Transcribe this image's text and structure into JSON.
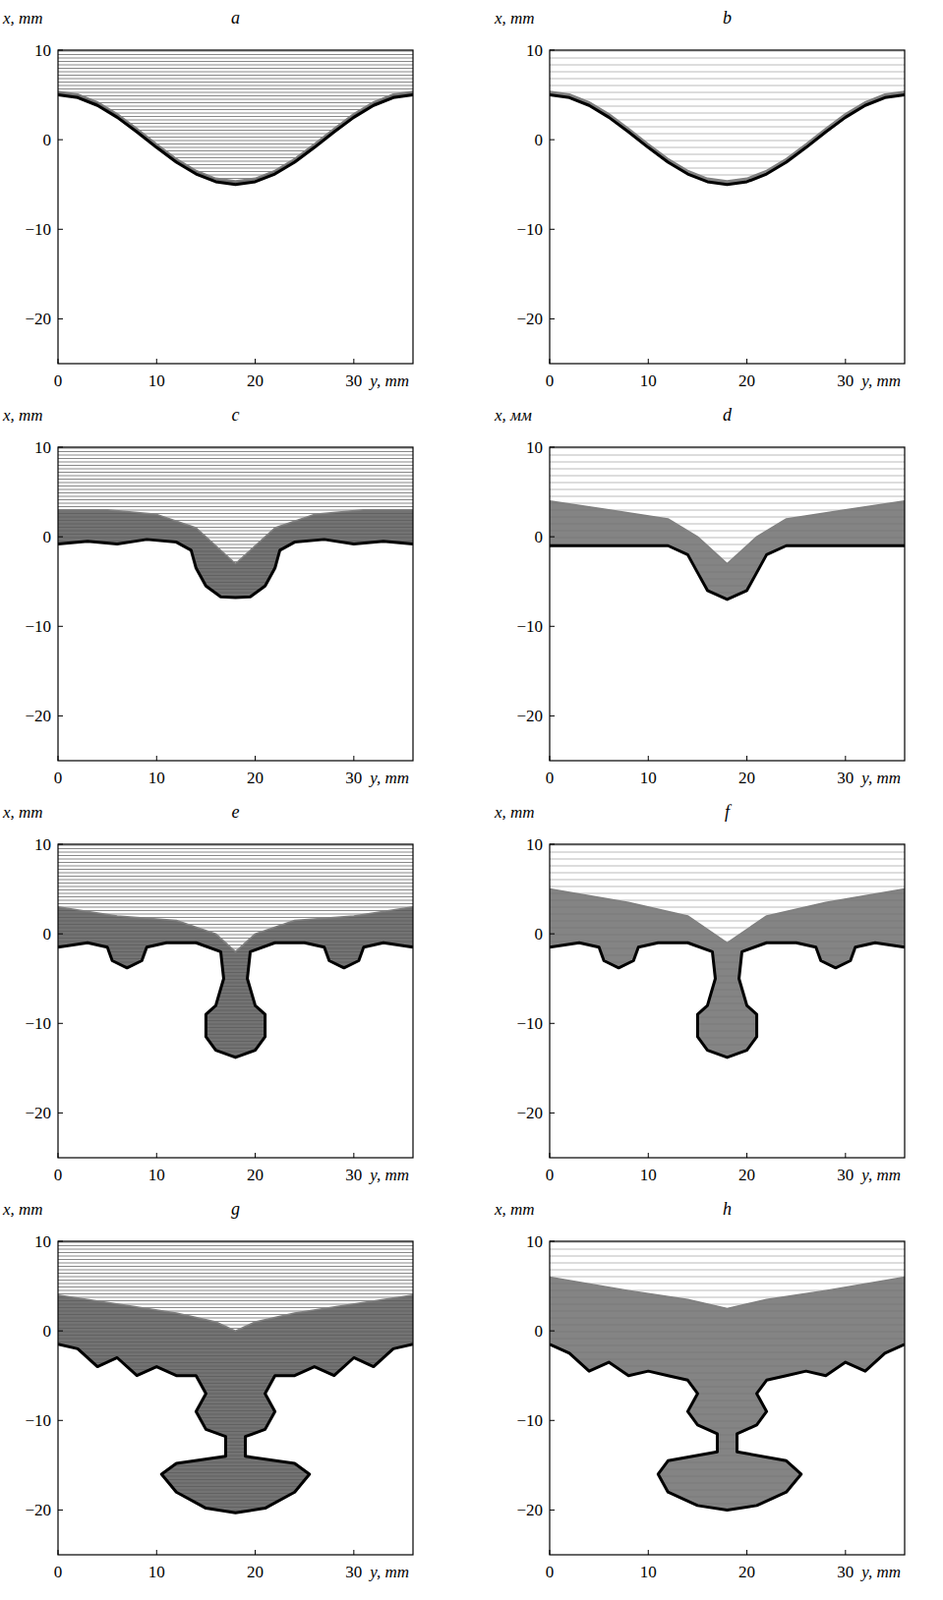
{
  "chart_data": [
    {
      "type": "contour",
      "title": "a",
      "xlabel": "y, mm",
      "ylabel": "x, mm",
      "xlim": [
        0,
        36
      ],
      "ylim": [
        -25,
        10
      ],
      "xticks": [
        0,
        10,
        20,
        30
      ],
      "yticks": [
        {
          "value": -20,
          "label": "−20"
        },
        {
          "value": -10,
          "label": "−10"
        },
        0,
        10
      ],
      "series": [
        {
          "color": "#000000",
          "x": [
            0,
            2,
            4,
            6,
            8,
            10,
            12,
            14,
            16,
            18,
            20,
            22,
            24,
            26,
            28,
            30,
            32,
            34,
            36
          ],
          "values": [
            5,
            4.7,
            3.83,
            2.5,
            0.87,
            -0.87,
            -2.5,
            -3.83,
            -4.7,
            -5,
            -4.7,
            -3.83,
            -2.5,
            -0.87,
            0.87,
            2.5,
            3.83,
            4.7,
            5
          ]
        },
        {
          "color": "#808080",
          "x": [
            0,
            2,
            4,
            6,
            8,
            10,
            12,
            14,
            16,
            18,
            20,
            22,
            24,
            26,
            28,
            30,
            32,
            34,
            36
          ],
          "values": [
            5.4,
            5.1,
            4.23,
            2.9,
            1.27,
            -0.47,
            -2.1,
            -3.43,
            -4.3,
            -4.6,
            -4.3,
            -3.43,
            -2.1,
            -0.47,
            1.27,
            2.9,
            4.23,
            5.1,
            5.4
          ]
        }
      ]
    },
    {
      "type": "contour",
      "title": "b",
      "xlabel": "y, mm",
      "ylabel": "x, mm",
      "xlim": [
        0,
        36
      ],
      "ylim": [
        -25,
        10
      ],
      "xticks": [
        0,
        10,
        20,
        30
      ],
      "yticks": [
        {
          "value": -20,
          "label": "−20"
        },
        {
          "value": -10,
          "label": "−10"
        },
        0,
        10
      ],
      "series": [
        {
          "color": "#000000",
          "x": [
            0,
            2,
            4,
            6,
            8,
            10,
            12,
            14,
            16,
            18,
            20,
            22,
            24,
            26,
            28,
            30,
            32,
            34,
            36
          ],
          "values": [
            5,
            4.7,
            3.83,
            2.5,
            0.87,
            -0.87,
            -2.5,
            -3.83,
            -4.7,
            -5,
            -4.7,
            -3.83,
            -2.5,
            -0.87,
            0.87,
            2.5,
            3.83,
            4.7,
            5
          ]
        },
        {
          "color": "#808080",
          "x": [
            0,
            2,
            4,
            6,
            8,
            10,
            12,
            14,
            16,
            18,
            20,
            22,
            24,
            26,
            28,
            30,
            32,
            34,
            36
          ],
          "values": [
            5.4,
            5.1,
            4.23,
            2.9,
            1.27,
            -0.47,
            -2.1,
            -3.43,
            -4.3,
            -4.6,
            -4.3,
            -3.43,
            -2.1,
            -0.47,
            1.27,
            2.9,
            4.23,
            5.1,
            5.4
          ]
        }
      ]
    },
    {
      "type": "contour",
      "title": "c",
      "xlabel": "y, mm",
      "ylabel": "x, mm",
      "xlim": [
        0,
        36
      ],
      "ylim": [
        -25,
        10
      ],
      "xticks": [
        0,
        10,
        20,
        30
      ],
      "yticks": [
        {
          "value": -20,
          "label": "−20"
        },
        {
          "value": -10,
          "label": "−10"
        },
        0,
        10
      ],
      "series": [
        {
          "color": "#000000",
          "x": [
            0,
            3,
            6,
            9,
            12,
            13.5,
            14,
            15,
            16.5,
            18,
            19.5,
            21,
            22,
            22.5,
            24,
            27,
            30,
            33,
            36
          ],
          "values": [
            -0.8,
            -0.5,
            -0.8,
            -0.3,
            -0.6,
            -1.5,
            -3.5,
            -5.5,
            -6.7,
            -6.8,
            -6.7,
            -5.5,
            -3.5,
            -1.5,
            -0.6,
            -0.3,
            -0.8,
            -0.5,
            -0.8
          ]
        },
        {
          "color": "#808080",
          "x": [
            0,
            5,
            10,
            14,
            16,
            18,
            20,
            22,
            26,
            31,
            36
          ],
          "values": [
            3,
            3,
            2.5,
            1,
            -1,
            -3,
            -1,
            1,
            2.5,
            3,
            3
          ]
        }
      ]
    },
    {
      "type": "contour",
      "title": "d",
      "xlabel": "y, mm",
      "ylabel": "x, мм",
      "xlim": [
        0,
        36
      ],
      "ylim": [
        -25,
        10
      ],
      "xticks": [
        0,
        10,
        20,
        30
      ],
      "yticks": [
        {
          "value": -20,
          "label": "−20"
        },
        {
          "value": -10,
          "label": "−10"
        },
        0,
        10
      ],
      "series": [
        {
          "color": "#000000",
          "x": [
            0,
            6,
            12,
            14,
            15,
            16,
            18,
            20,
            21,
            22,
            24,
            30,
            36
          ],
          "values": [
            -1,
            -1,
            -1,
            -2,
            -4,
            -6,
            -7,
            -6,
            -4,
            -2,
            -1,
            -1,
            -1
          ]
        },
        {
          "color": "#808080",
          "x": [
            0,
            6,
            12,
            15,
            18,
            21,
            24,
            30,
            36
          ],
          "values": [
            4,
            3,
            2,
            0,
            -3,
            0,
            2,
            3,
            4
          ]
        }
      ]
    },
    {
      "type": "contour",
      "title": "e",
      "xlabel": "y, mm",
      "ylabel": "x, mm",
      "xlim": [
        0,
        36
      ],
      "ylim": [
        -25,
        10
      ],
      "xticks": [
        0,
        10,
        20,
        30
      ],
      "yticks": [
        {
          "value": -20,
          "label": "−20"
        },
        {
          "value": -10,
          "label": "−10"
        },
        0,
        10
      ],
      "series": [
        {
          "color": "#000000",
          "x": [
            0,
            3,
            5,
            5.5,
            7,
            8.5,
            9,
            11,
            14,
            16.5,
            16.8,
            16,
            15,
            15,
            16,
            18,
            20,
            21,
            21,
            20,
            19.2,
            19.5,
            22,
            25,
            27,
            27.5,
            29,
            30.5,
            31,
            33,
            36
          ],
          "values": [
            -1.5,
            -1,
            -1.5,
            -3,
            -3.8,
            -3,
            -1.5,
            -1,
            -1,
            -2,
            -5,
            -8,
            -9,
            -11.5,
            -13,
            -13.8,
            -13,
            -11.5,
            -9,
            -8,
            -5,
            -2,
            -1,
            -1,
            -1.5,
            -3,
            -3.8,
            -3,
            -1.5,
            -1,
            -1.5
          ]
        },
        {
          "color": "#808080",
          "x": [
            0,
            6,
            12,
            16,
            18,
            20,
            24,
            30,
            36
          ],
          "values": [
            3,
            2,
            1.5,
            0,
            -2,
            0,
            1.5,
            2,
            3
          ]
        }
      ]
    },
    {
      "type": "contour",
      "title": "f",
      "xlabel": "y, mm",
      "ylabel": "x, mm",
      "xlim": [
        0,
        36
      ],
      "ylim": [
        -25,
        10
      ],
      "xticks": [
        0,
        10,
        20,
        30
      ],
      "yticks": [
        {
          "value": -20,
          "label": "−20"
        },
        {
          "value": -10,
          "label": "−10"
        },
        0,
        10
      ],
      "series": [
        {
          "color": "#000000",
          "x": [
            0,
            3,
            5,
            5.5,
            7,
            8.5,
            9,
            11,
            14,
            16.5,
            16.8,
            16,
            15,
            15,
            16,
            18,
            20,
            21,
            21,
            20,
            19.2,
            19.5,
            22,
            25,
            27,
            27.5,
            29,
            30.5,
            31,
            33,
            36
          ],
          "values": [
            -1.5,
            -1,
            -1.5,
            -3,
            -3.8,
            -3,
            -1.5,
            -1,
            -1,
            -2,
            -5,
            -8,
            -9,
            -11.5,
            -13,
            -13.8,
            -13,
            -11.5,
            -9,
            -8,
            -5,
            -2,
            -1,
            -1,
            -1.5,
            -3,
            -3.8,
            -3,
            -1.5,
            -1,
            -1.5
          ]
        },
        {
          "color": "#808080",
          "x": [
            0,
            8,
            14,
            18,
            22,
            28,
            36
          ],
          "values": [
            5,
            3.5,
            2,
            -1,
            2,
            3.5,
            5
          ]
        }
      ]
    },
    {
      "type": "contour",
      "title": "g",
      "xlabel": "y, mm",
      "ylabel": "x, mm",
      "xlim": [
        0,
        36
      ],
      "ylim": [
        -25,
        10
      ],
      "xticks": [
        0,
        10,
        20,
        30
      ],
      "yticks": [
        {
          "value": -20,
          "label": "−20"
        },
        {
          "value": -10,
          "label": "−10"
        },
        0,
        10
      ],
      "series": [
        {
          "color": "#000000",
          "x": [
            0,
            2,
            4,
            6,
            8,
            10,
            12,
            14,
            15,
            14,
            15,
            17,
            17,
            12,
            10.5,
            12,
            15,
            18,
            21,
            24,
            25.5,
            24,
            19,
            19,
            21,
            22,
            21,
            22,
            24,
            26,
            28,
            30,
            32,
            34,
            36
          ],
          "values": [
            -1.5,
            -2,
            -4,
            -3,
            -5,
            -4,
            -5,
            -5,
            -7,
            -9,
            -11,
            -11.8,
            -14,
            -14.8,
            -16,
            -18,
            -19.8,
            -20.3,
            -19.8,
            -18,
            -16,
            -14.8,
            -14,
            -11.8,
            -11,
            -9,
            -7,
            -5,
            -5,
            -4,
            -5,
            -3,
            -4,
            -2,
            -1.5
          ]
        },
        {
          "color": "#808080",
          "x": [
            0,
            6,
            12,
            16,
            18,
            20,
            24,
            30,
            36
          ],
          "values": [
            4,
            3,
            2,
            1,
            0,
            1,
            2,
            3,
            4
          ]
        }
      ]
    },
    {
      "type": "contour",
      "title": "h",
      "xlabel": "y, mm",
      "ylabel": "x, mm",
      "xlim": [
        0,
        36
      ],
      "ylim": [
        -25,
        10
      ],
      "xticks": [
        0,
        10,
        20,
        30
      ],
      "yticks": [
        {
          "value": -20,
          "label": "−20"
        },
        {
          "value": -10,
          "label": "−10"
        },
        0,
        10
      ],
      "series": [
        {
          "color": "#000000",
          "x": [
            0,
            2,
            4,
            6,
            8,
            10,
            12,
            14,
            15,
            14,
            15,
            17,
            17,
            12,
            11,
            12,
            15,
            18,
            21,
            24,
            25.5,
            24,
            19,
            19,
            21,
            22,
            21,
            22,
            24,
            26,
            28,
            30,
            32,
            34,
            36
          ],
          "values": [
            -1.5,
            -2.5,
            -4.5,
            -3.5,
            -5,
            -4.5,
            -5,
            -5.5,
            -7,
            -9,
            -10.5,
            -11.5,
            -13.5,
            -14.5,
            -16,
            -18,
            -19.5,
            -20,
            -19.5,
            -18,
            -16,
            -14.5,
            -13.5,
            -11.5,
            -10.5,
            -9,
            -7,
            -5.5,
            -5,
            -4.5,
            -5,
            -3.5,
            -4.5,
            -2.5,
            -1.5
          ]
        },
        {
          "color": "#808080",
          "x": [
            0,
            8,
            14,
            18,
            22,
            28,
            36
          ],
          "values": [
            6,
            4.5,
            3.5,
            2.5,
            3.5,
            4.5,
            6
          ]
        }
      ]
    }
  ]
}
